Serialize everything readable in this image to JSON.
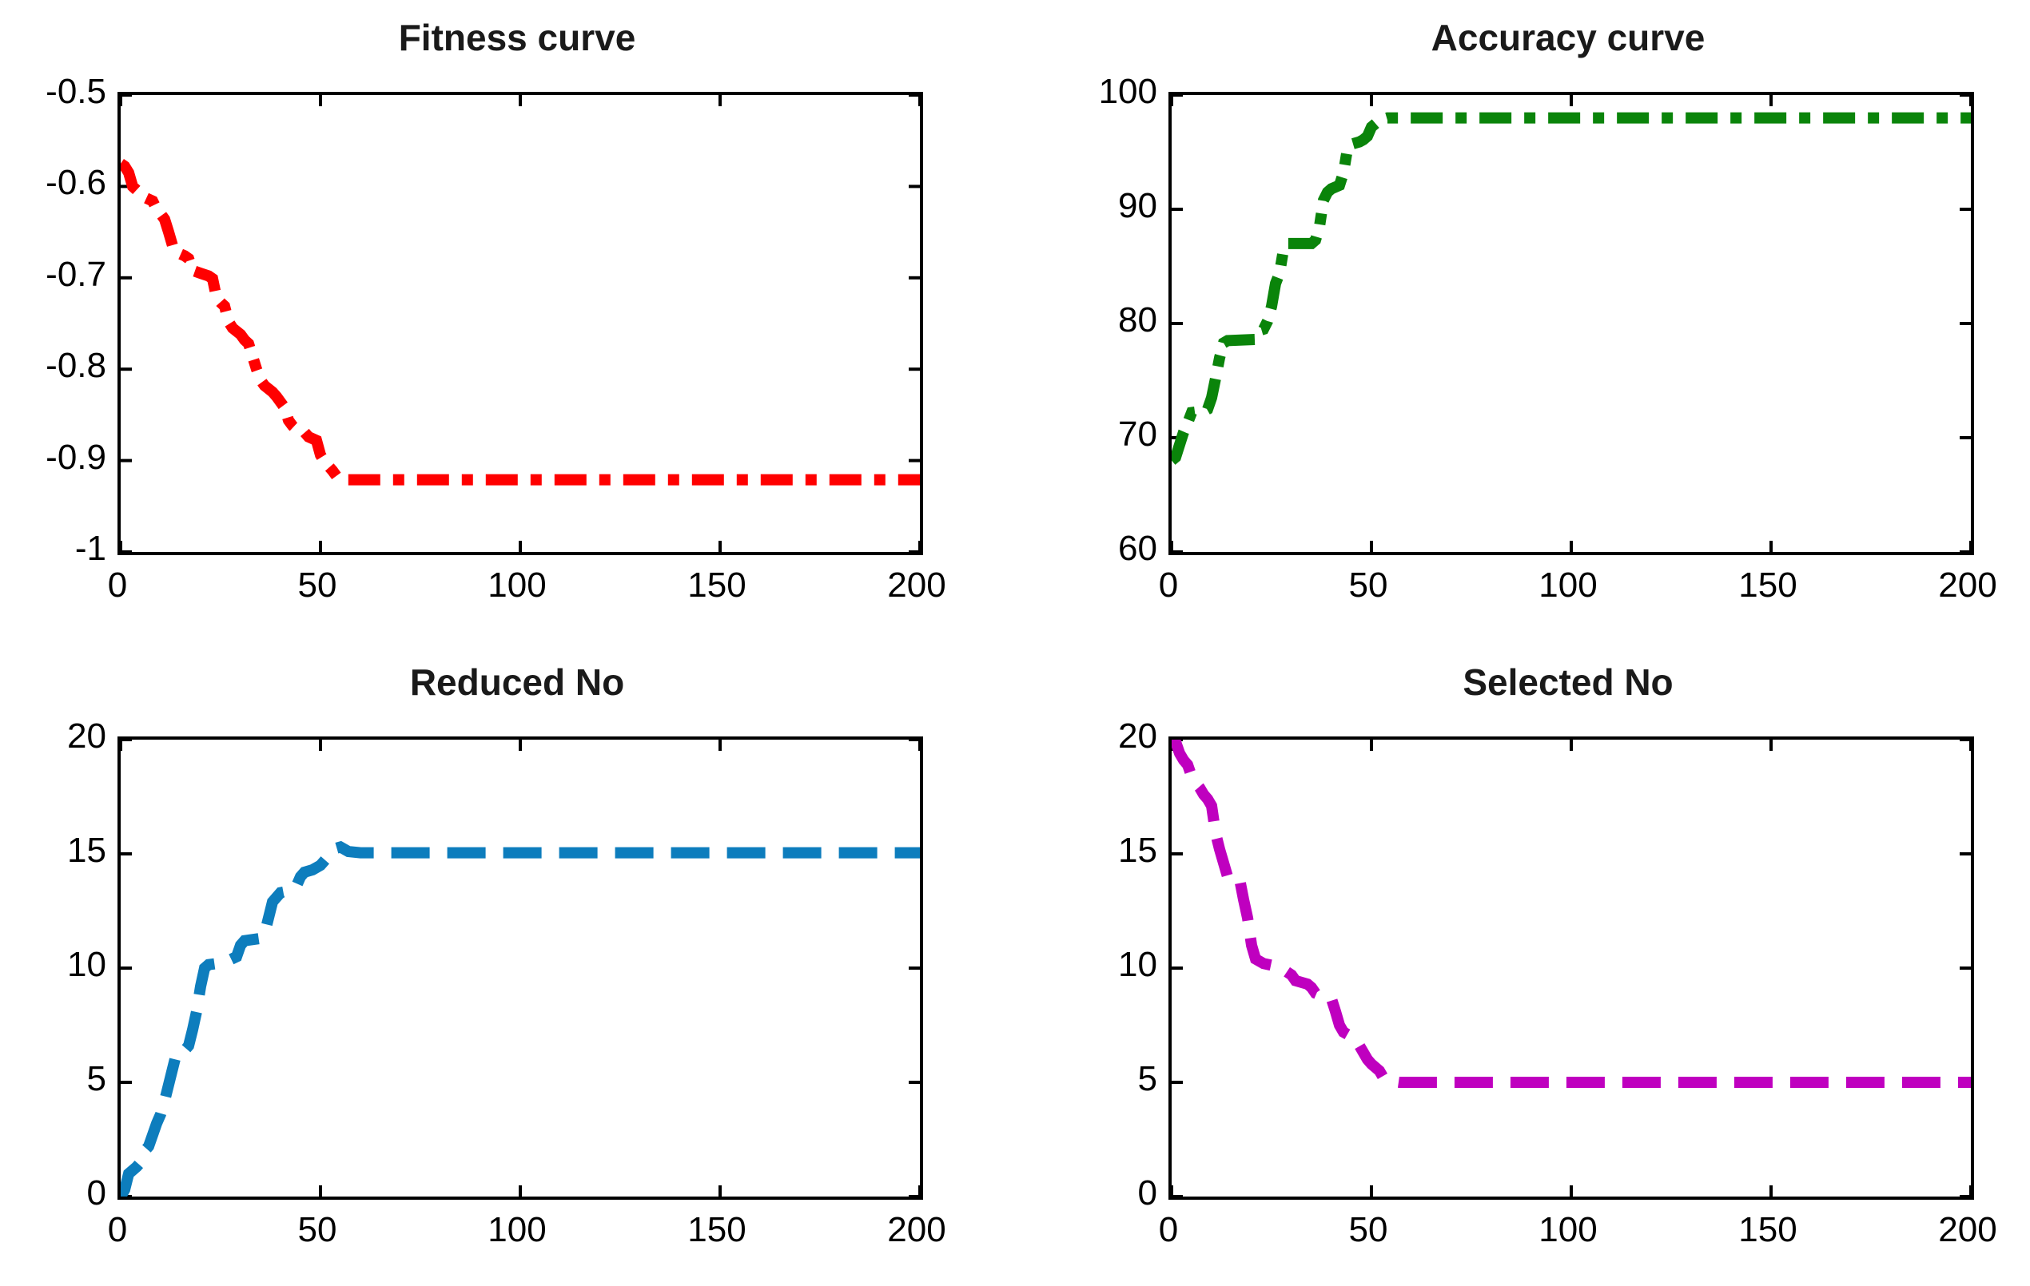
{
  "figure": {
    "background": "#ffffff",
    "axis_color": "#000000",
    "tick_label_color": "#000000"
  },
  "chart_data": [
    {
      "type": "line",
      "title": "Fitness curve",
      "series_name": "fitness",
      "color": "#ff0000",
      "line_style": "dash-dot",
      "xlim": [
        0,
        200
      ],
      "ylim": [
        -1,
        -0.5
      ],
      "grid": false,
      "legend": false,
      "xticks": {
        "values": [
          0,
          50,
          100,
          150,
          200
        ],
        "labels": [
          "0",
          "50",
          "100",
          "150",
          "200"
        ]
      },
      "yticks": {
        "values": [
          -0.5,
          -0.6,
          -0.7,
          -0.8,
          -0.9,
          -1
        ],
        "labels": [
          "-0.5",
          "-0.6",
          "-0.7",
          "-0.8",
          "-0.9",
          "-1"
        ]
      },
      "points": [
        [
          0,
          -0.575
        ],
        [
          1,
          -0.578
        ],
        [
          2,
          -0.585
        ],
        [
          3,
          -0.6
        ],
        [
          5,
          -0.608
        ],
        [
          6,
          -0.612
        ],
        [
          8,
          -0.616
        ],
        [
          9,
          -0.625
        ],
        [
          10,
          -0.63
        ],
        [
          11,
          -0.636
        ],
        [
          12,
          -0.65
        ],
        [
          13,
          -0.665
        ],
        [
          14,
          -0.672
        ],
        [
          16,
          -0.676
        ],
        [
          17,
          -0.679
        ],
        [
          18,
          -0.692
        ],
        [
          20,
          -0.695
        ],
        [
          22,
          -0.698
        ],
        [
          23,
          -0.701
        ],
        [
          24,
          -0.722
        ],
        [
          25,
          -0.727
        ],
        [
          26,
          -0.731
        ],
        [
          27,
          -0.748
        ],
        [
          28,
          -0.755
        ],
        [
          30,
          -0.762
        ],
        [
          31,
          -0.768
        ],
        [
          32,
          -0.772
        ],
        [
          33,
          -0.786
        ],
        [
          34,
          -0.8
        ],
        [
          35,
          -0.812
        ],
        [
          36,
          -0.818
        ],
        [
          38,
          -0.825
        ],
        [
          39,
          -0.83
        ],
        [
          40,
          -0.836
        ],
        [
          41,
          -0.842
        ],
        [
          42,
          -0.856
        ],
        [
          43,
          -0.862
        ],
        [
          44,
          -0.866
        ],
        [
          46,
          -0.869
        ],
        [
          47,
          -0.874
        ],
        [
          49,
          -0.878
        ],
        [
          50,
          -0.894
        ],
        [
          51,
          -0.901
        ],
        [
          52,
          -0.906
        ],
        [
          53,
          -0.911
        ],
        [
          54,
          -0.917
        ],
        [
          56,
          -0.921
        ],
        [
          200,
          -0.921
        ]
      ]
    },
    {
      "type": "line",
      "title": "Accuracy curve",
      "series_name": "accuracy",
      "color": "#0a840a",
      "line_style": "dash-dot",
      "xlim": [
        0,
        200
      ],
      "ylim": [
        60,
        100
      ],
      "grid": false,
      "legend": false,
      "xticks": {
        "values": [
          0,
          50,
          100,
          150,
          200
        ],
        "labels": [
          "0",
          "50",
          "100",
          "150",
          "200"
        ]
      },
      "yticks": {
        "values": [
          100,
          90,
          80,
          70,
          60
        ],
        "labels": [
          "100",
          "90",
          "80",
          "70",
          "60"
        ]
      },
      "points": [
        [
          0,
          68
        ],
        [
          1,
          68.3
        ],
        [
          3,
          70.5
        ],
        [
          4,
          71.3
        ],
        [
          5,
          72.2
        ],
        [
          7,
          72.3
        ],
        [
          8,
          72.3
        ],
        [
          9,
          72.5
        ],
        [
          10,
          73.5
        ],
        [
          11,
          75.2
        ],
        [
          12,
          77
        ],
        [
          13,
          78.3
        ],
        [
          14,
          78.5
        ],
        [
          21,
          78.6
        ],
        [
          22,
          79.4
        ],
        [
          23,
          79.5
        ],
        [
          24,
          80.2
        ],
        [
          25,
          81.5
        ],
        [
          26,
          83.5
        ],
        [
          27,
          84.4
        ],
        [
          28,
          86.5
        ],
        [
          29,
          87
        ],
        [
          35,
          87
        ],
        [
          36,
          87.3
        ],
        [
          37,
          88.5
        ],
        [
          38,
          90.8
        ],
        [
          39,
          91.5
        ],
        [
          40,
          91.8
        ],
        [
          42,
          92.1
        ],
        [
          43,
          93.2
        ],
        [
          44,
          95.3
        ],
        [
          45,
          95.7
        ],
        [
          47,
          95.9
        ],
        [
          48,
          96.1
        ],
        [
          49,
          96.4
        ],
        [
          50,
          97.2
        ],
        [
          51,
          97.5
        ],
        [
          52,
          97.8
        ],
        [
          54,
          98
        ],
        [
          200,
          98
        ]
      ]
    },
    {
      "type": "line",
      "title": "Reduced No",
      "series_name": "reduced-no",
      "color": "#0d7dbd",
      "line_style": "dashed",
      "xlim": [
        0,
        200
      ],
      "ylim": [
        0,
        20
      ],
      "grid": false,
      "legend": false,
      "xticks": {
        "values": [
          0,
          50,
          100,
          150,
          200
        ],
        "labels": [
          "0",
          "50",
          "100",
          "150",
          "200"
        ]
      },
      "yticks": {
        "values": [
          20,
          15,
          10,
          5,
          0
        ],
        "labels": [
          "20",
          "15",
          "10",
          "5",
          "0"
        ]
      },
      "points": [
        [
          0,
          0
        ],
        [
          1,
          0.3
        ],
        [
          2,
          1
        ],
        [
          4,
          1.3
        ],
        [
          5,
          1.5
        ],
        [
          6,
          2
        ],
        [
          7,
          2.2
        ],
        [
          8,
          2.7
        ],
        [
          9,
          3.2
        ],
        [
          10,
          3.6
        ],
        [
          11,
          4.2
        ],
        [
          12,
          4.9
        ],
        [
          13,
          5.6
        ],
        [
          14,
          6.3
        ],
        [
          16,
          6.4
        ],
        [
          17,
          6.6
        ],
        [
          18,
          7.3
        ],
        [
          19,
          8.1
        ],
        [
          20,
          9.2
        ],
        [
          21,
          10
        ],
        [
          22,
          10.15
        ],
        [
          26,
          10.25
        ],
        [
          29,
          10.5
        ],
        [
          30,
          11
        ],
        [
          31,
          11.2
        ],
        [
          35,
          11.3
        ],
        [
          36,
          11.5
        ],
        [
          37,
          12.2
        ],
        [
          38,
          12.9
        ],
        [
          39,
          13.1
        ],
        [
          40,
          13.3
        ],
        [
          43,
          13.4
        ],
        [
          44,
          13.6
        ],
        [
          45,
          14
        ],
        [
          46,
          14.2
        ],
        [
          48,
          14.3
        ],
        [
          50,
          14.5
        ],
        [
          52,
          14.9
        ],
        [
          53,
          15.2
        ],
        [
          55,
          15.3
        ],
        [
          57,
          15.1
        ],
        [
          60,
          15.05
        ],
        [
          200,
          15.05
        ]
      ]
    },
    {
      "type": "line",
      "title": "Selected No",
      "series_name": "selected-no",
      "color": "#bf00bf",
      "line_style": "dashed",
      "xlim": [
        0,
        200
      ],
      "ylim": [
        0,
        20
      ],
      "grid": false,
      "legend": false,
      "xticks": {
        "values": [
          0,
          50,
          100,
          150,
          200
        ],
        "labels": [
          "0",
          "50",
          "100",
          "150",
          "200"
        ]
      },
      "yticks": {
        "values": [
          20,
          15,
          10,
          5,
          0
        ],
        "labels": [
          "20",
          "15",
          "10",
          "5",
          "0"
        ]
      },
      "points": [
        [
          0,
          20
        ],
        [
          1,
          19.9
        ],
        [
          2,
          19.4
        ],
        [
          3,
          19.1
        ],
        [
          4,
          18.9
        ],
        [
          5,
          18.4
        ],
        [
          6,
          18.1
        ],
        [
          7,
          17.9
        ],
        [
          8,
          17.6
        ],
        [
          9,
          17.4
        ],
        [
          10,
          17.1
        ],
        [
          11,
          15.9
        ],
        [
          12,
          15.2
        ],
        [
          13,
          14.6
        ],
        [
          14,
          14
        ],
        [
          17,
          13.9
        ],
        [
          18,
          13
        ],
        [
          19,
          12.2
        ],
        [
          20,
          11
        ],
        [
          21,
          10.4
        ],
        [
          23,
          10.2
        ],
        [
          27,
          10.05
        ],
        [
          30,
          9.7
        ],
        [
          31,
          9.45
        ],
        [
          34,
          9.3
        ],
        [
          35,
          9.15
        ],
        [
          36,
          8.9
        ],
        [
          38,
          8.75
        ],
        [
          40,
          8.65
        ],
        [
          41,
          8.1
        ],
        [
          42,
          7.5
        ],
        [
          43,
          7.2
        ],
        [
          45,
          7
        ],
        [
          46,
          6.9
        ],
        [
          47,
          6.6
        ],
        [
          48,
          6.3
        ],
        [
          49,
          6
        ],
        [
          50,
          5.8
        ],
        [
          52,
          5.5
        ],
        [
          53,
          5.2
        ],
        [
          55,
          5.05
        ],
        [
          57,
          5
        ],
        [
          200,
          5
        ]
      ]
    }
  ]
}
